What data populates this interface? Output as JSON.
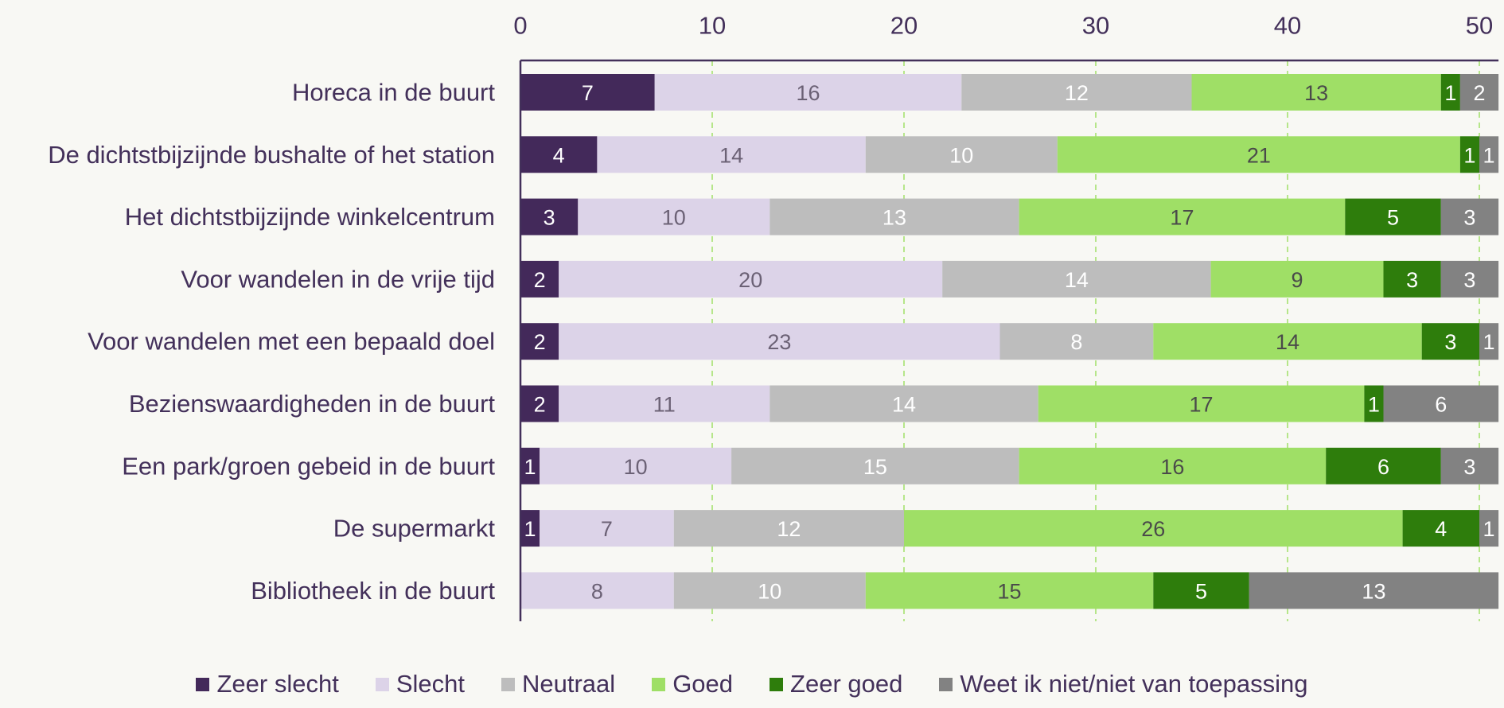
{
  "chart_data": {
    "type": "bar",
    "orientation": "horizontal",
    "stacked": true,
    "categories": [
      "Horeca in de buurt",
      "De dichtstbijzijnde bushalte of het station",
      "Het dichtstbijzijnde winkelcentrum",
      "Voor wandelen in de vrije tijd",
      "Voor wandelen met een bepaald doel",
      "Bezienswaardigheden in de buurt",
      "Een park/groen gebeid in de buurt",
      "De supermarkt",
      "Bibliotheek in de buurt"
    ],
    "series": [
      {
        "name": "Zeer slecht",
        "color": "#43295a",
        "label_color": "#ffffff",
        "values": [
          7,
          4,
          3,
          2,
          2,
          2,
          1,
          1,
          0
        ]
      },
      {
        "name": "Slecht",
        "color": "#dcd3e8",
        "label_color": "#6b6175",
        "values": [
          16,
          14,
          10,
          20,
          23,
          11,
          10,
          7,
          8
        ]
      },
      {
        "name": "Neutraal",
        "color": "#bdbdbd",
        "label_color": "#ffffff",
        "values": [
          12,
          10,
          13,
          14,
          8,
          14,
          15,
          12,
          10
        ]
      },
      {
        "name": "Goed",
        "color": "#9fdf66",
        "label_color": "#4a4a4a",
        "values": [
          13,
          21,
          17,
          9,
          14,
          17,
          16,
          26,
          15
        ]
      },
      {
        "name": "Zeer goed",
        "color": "#2e7d0c",
        "label_color": "#ffffff",
        "values": [
          1,
          1,
          5,
          3,
          3,
          1,
          6,
          4,
          5
        ]
      },
      {
        "name": "Weet ik niet/niet van toepassing",
        "color": "#828282",
        "label_color": "#ffffff",
        "values": [
          2,
          1,
          3,
          3,
          1,
          6,
          3,
          1,
          13
        ]
      }
    ],
    "xlim": [
      0,
      51
    ],
    "xticks": [
      0,
      10,
      20,
      30,
      40,
      50
    ],
    "x_axis_position": "top",
    "grid": true,
    "grid_color": "#9fdf66",
    "legend": "bottom"
  }
}
